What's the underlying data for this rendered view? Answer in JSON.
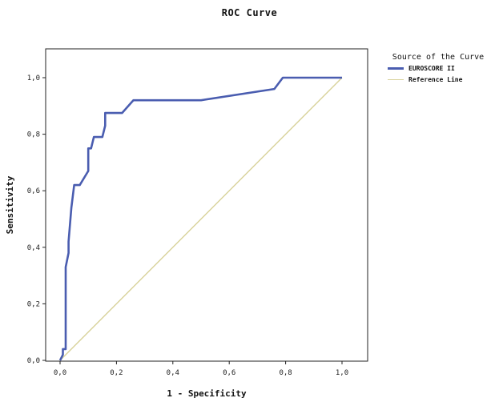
{
  "chart_data": {
    "type": "line",
    "title": "ROC Curve",
    "xlabel": "1 - Specificity",
    "ylabel": "Sensitivity",
    "xlim": [
      0,
      1
    ],
    "ylim": [
      0,
      1
    ],
    "xticks": [
      "0,0",
      "0,2",
      "0,4",
      "0,6",
      "0,8",
      "1,0"
    ],
    "yticks": [
      "0,0",
      "0,2",
      "0,4",
      "0,6",
      "0,8",
      "1,0"
    ],
    "grid": false,
    "legend_title": "Source of the Curve",
    "legend_position": "right",
    "series": [
      {
        "name": "EUROSCORE II",
        "color": "#4a5db0",
        "x": [
          0.0,
          0.01,
          0.01,
          0.02,
          0.02,
          0.03,
          0.03,
          0.04,
          0.04,
          0.05,
          0.05,
          0.07,
          0.1,
          0.1,
          0.11,
          0.12,
          0.12,
          0.15,
          0.16,
          0.16,
          0.22,
          0.26,
          0.5,
          0.76,
          0.79,
          0.84,
          1.0
        ],
        "y": [
          0.0,
          0.02,
          0.04,
          0.04,
          0.33,
          0.38,
          0.42,
          0.54,
          0.54,
          0.62,
          0.62,
          0.62,
          0.67,
          0.75,
          0.75,
          0.79,
          0.79,
          0.79,
          0.83,
          0.875,
          0.875,
          0.92,
          0.92,
          0.96,
          1.0,
          1.0,
          1.0
        ]
      },
      {
        "name": "Reference Line",
        "color": "#d8d29a",
        "x": [
          0,
          1
        ],
        "y": [
          0,
          1
        ]
      }
    ]
  }
}
